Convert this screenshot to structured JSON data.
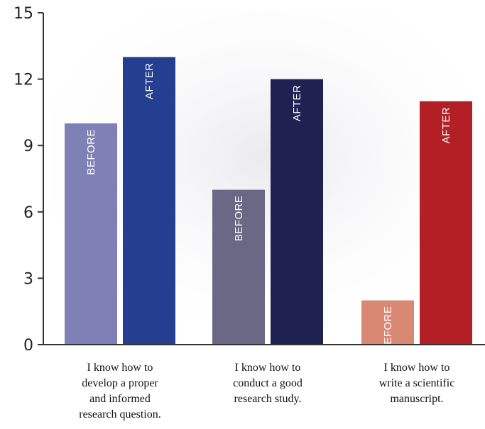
{
  "chart_data": {
    "type": "bar",
    "categories": [
      "I know how to\ndevelop a proper\nand informed\nresearch question.",
      "I know how to\nconduct a good\nresearch study.",
      "I know how to\nwrite a scientific\nmanuscript."
    ],
    "series": [
      {
        "name": "BEFORE",
        "values": [
          10,
          7,
          2
        ],
        "colors": [
          "#7f80b6",
          "#6b6885",
          "#d98873"
        ]
      },
      {
        "name": "AFTER",
        "values": [
          13,
          12,
          11
        ],
        "colors": [
          "#243f8f",
          "#1f2150",
          "#b21f24"
        ]
      }
    ],
    "yticks": [
      0,
      3,
      6,
      9,
      12,
      15
    ],
    "ylim": [
      0,
      15
    ],
    "title": "",
    "xlabel": "",
    "ylabel": "",
    "grid": false,
    "axis_color": "#333333"
  }
}
